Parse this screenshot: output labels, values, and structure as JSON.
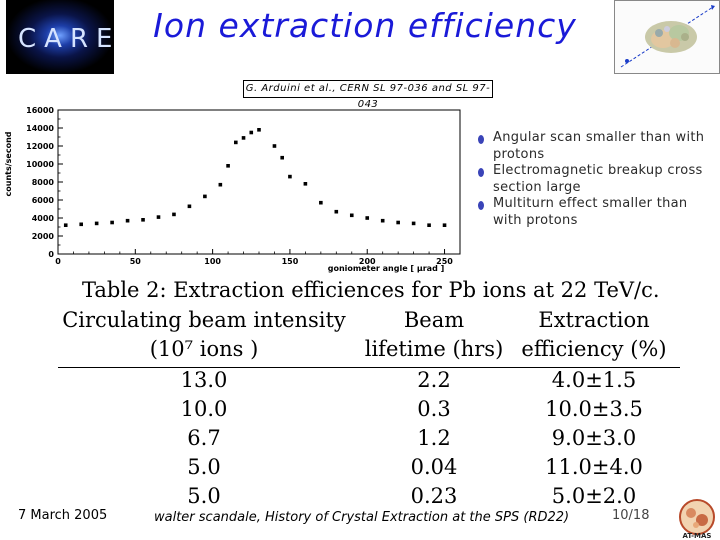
{
  "slide": {
    "title": "Ion extraction efficiency",
    "logo_text": "CARE",
    "reference": "G. Arduini et al., CERN SL 97-036 and SL 97-043"
  },
  "bullets": [
    "Angular scan smaller than with protons",
    "Electromagnetic breakup cross section large",
    "Multiturn effect smaller than with protons"
  ],
  "chart_data": {
    "type": "scatter",
    "title": "",
    "xlabel": "goniometer angle  [ μrad ]",
    "ylabel": "counts/second",
    "xlim": [
      0,
      260
    ],
    "ylim": [
      0,
      16000
    ],
    "x_ticks": [
      "0",
      "50",
      "100",
      "150",
      "200",
      "250"
    ],
    "y_ticks": [
      "0",
      "2000",
      "4000",
      "6000",
      "8000",
      "10000",
      "12000",
      "14000",
      "16000"
    ],
    "x_tick_values": [
      0,
      50,
      100,
      150,
      200,
      250
    ],
    "y_tick_values": [
      0,
      2000,
      4000,
      6000,
      8000,
      10000,
      12000,
      14000,
      16000
    ],
    "grid": false,
    "series": [
      {
        "x": [
          5,
          15,
          25,
          35,
          45,
          55,
          65,
          75,
          85,
          95,
          105,
          110,
          115,
          120,
          125,
          130,
          140,
          145,
          150,
          160,
          170,
          180,
          190,
          200,
          210,
          220,
          230,
          240,
          250
        ],
        "y": [
          3200,
          3300,
          3400,
          3500,
          3700,
          3800,
          4100,
          4400,
          5300,
          6400,
          7700,
          9800,
          12400,
          12900,
          13500,
          13800,
          12000,
          10700,
          8600,
          7800,
          5700,
          4700,
          4300,
          4000,
          3700,
          3500,
          3400,
          3200,
          3200
        ]
      }
    ]
  },
  "table": {
    "caption": "Table 2: Extraction efficiences for Pb ions at 22 TeV/c.",
    "headers": [
      {
        "line1": "Circulating beam intensity",
        "line2": "(10⁷ ions )"
      },
      {
        "line1": "Beam",
        "line2": "lifetime (hrs)"
      },
      {
        "line1": "Extraction",
        "line2": "efficiency (%)"
      }
    ],
    "rows": [
      [
        "13.0",
        "2.2",
        "4.0±1.5"
      ],
      [
        "10.0",
        "0.3",
        "10.0±3.5"
      ],
      [
        "6.7",
        "1.2",
        "9.0±3.0"
      ],
      [
        "5.0",
        "0.04",
        "11.0±4.0"
      ],
      [
        "5.0",
        "0.23",
        "5.0±2.0"
      ]
    ]
  },
  "footer": {
    "date": "7 March 2005",
    "author": "walter scandale, History of Crystal Extraction at the SPS (RD22)",
    "page": "10/18",
    "atmas_label": "AT-MAS"
  },
  "colors": {
    "title": "#1a1ad8",
    "bullet": "#3a44b8"
  }
}
